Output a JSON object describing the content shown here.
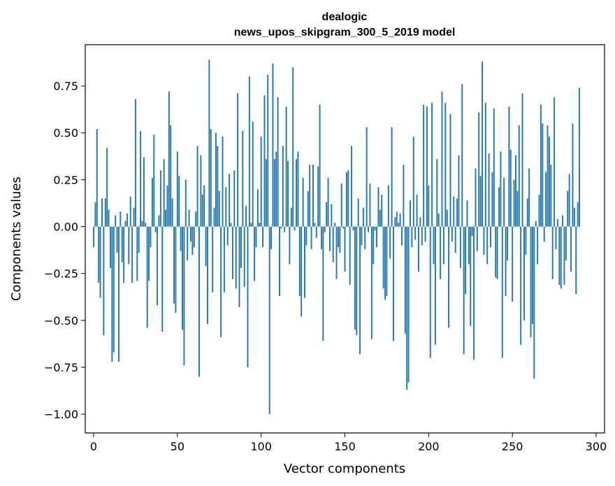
{
  "chart_data": {
    "type": "bar",
    "title": "dealogic",
    "subtitle": "news_upos_skipgram_300_5_2019 model",
    "xlabel": "Vector components",
    "ylabel": "Components values",
    "xlim": [
      -5,
      305
    ],
    "ylim": [
      -1.1,
      0.97
    ],
    "xticks": [
      0,
      50,
      100,
      150,
      200,
      250,
      300
    ],
    "yticks": [
      0.75,
      0.5,
      0.25,
      0.0,
      -0.25,
      -0.5,
      -0.75,
      -1.0
    ],
    "ytick_labels": [
      "0.75",
      "0.50",
      "0.25",
      "0.00",
      "−0.25",
      "−0.50",
      "−0.75",
      "−1.00"
    ],
    "grid": false,
    "bar_color": "#1f77b4",
    "x_start": 0,
    "values": [
      -0.11,
      0.13,
      0.52,
      -0.3,
      -0.38,
      0.15,
      -0.58,
      0.15,
      0.42,
      0.09,
      -0.22,
      -0.72,
      -0.67,
      0.06,
      -0.14,
      -0.72,
      0.08,
      -0.19,
      -0.3,
      0.03,
      0.07,
      -0.2,
      0.16,
      -0.3,
      0.1,
      0.68,
      -0.29,
      -0.14,
      0.51,
      0.03,
      0.37,
      0.02,
      -0.54,
      -0.29,
      -0.11,
      0.26,
      0.49,
      -0.03,
      -0.42,
      0.06,
      0.3,
      -0.56,
      0.36,
      0.09,
      0.22,
      0.72,
      0.54,
      0.15,
      -0.41,
      -0.46,
      0.4,
      0.27,
      -0.13,
      -0.55,
      -0.74,
      0.25,
      -0.18,
      0.09,
      -0.08,
      -0.15,
      -0.11,
      0.08,
      0.43,
      -0.8,
      0.38,
      0.17,
      0.22,
      -0.21,
      -0.52,
      0.89,
      0.52,
      -0.35,
      0.1,
      0.5,
      0.43,
      0.19,
      -0.59,
      0.48,
      -0.35,
      0.21,
      -0.1,
      0.28,
      0.02,
      -0.28,
      0.3,
      -0.33,
      0.71,
      -0.43,
      -0.22,
      0.51,
      -0.32,
      0.11,
      -0.75,
      0.8,
      0.02,
      0.56,
      -0.29,
      -0.11,
      0.2,
      0.02,
      0.48,
      -0.11,
      0.7,
      0.36,
      0.81,
      -1.0,
      -0.12,
      0.87,
      0.36,
      0.4,
      0.69,
      -0.37,
      -0.01,
      0.43,
      -0.03,
      0.64,
      0.35,
      -0.2,
      0.1,
      0.85,
      -0.02,
      0.36,
      0.4,
      -0.37,
      -0.48,
      0.26,
      -0.38,
      -0.1,
      0.19,
      0.33,
      -0.12,
      0.33,
      0.02,
      -0.06,
      0.32,
      0.65,
      -0.12,
      -0.61,
      -0.03,
      0.13,
      0.26,
      -0.13,
      0.12,
      -0.19,
      0.02,
      -0.28,
      -0.11,
      -0.14,
      0.23,
      -0.01,
      -0.24,
      0.29,
      0.3,
      -0.31,
      0.43,
      -0.02,
      -0.55,
      -0.58,
      0.15,
      -0.68,
      -0.1,
      0.1,
      -0.12,
      0.53,
      -0.03,
      0.23,
      -0.6,
      -0.2,
      -0.02,
      -0.11,
      0.21,
      0.09,
      0.17,
      -0.33,
      -0.39,
      -0.37,
      0.22,
      -0.17,
      0.53,
      -0.61,
      0.05,
      0.08,
      0.02,
      0.07,
      -0.1,
      0.33,
      -0.57,
      -0.87,
      -0.83,
      0.14,
      -0.11,
      0.48,
      -0.07,
      0.17,
      -0.24,
      0.05,
      -0.1,
      0.65,
      -0.08,
      0.64,
      0.22,
      -0.7,
      0.66,
      -0.2,
      -0.63,
      0.36,
      0.07,
      -0.28,
      0.72,
      -0.2,
      0.66,
      0.09,
      -0.54,
      0.6,
      -0.08,
      0.16,
      -0.14,
      0.15,
      0.38,
      -0.22,
      0.76,
      -0.68,
      -0.36,
      0.14,
      -0.2,
      -0.53,
      -0.05,
      -0.71,
      0.31,
      -0.13,
      0.61,
      0.27,
      0.88,
      -0.15,
      0.66,
      -0.2,
      0.39,
      -0.11,
      0.29,
      0.63,
      -0.27,
      -0.28,
      0.21,
      0.4,
      -0.7,
      0.26,
      -0.37,
      -0.18,
      0.64,
      0.41,
      -0.4,
      0.25,
      0.38,
      0.19,
      0.54,
      -0.63,
      0.71,
      -0.5,
      -0.15,
      0.15,
      0.31,
      -0.59,
      -0.52,
      -0.81,
      0.03,
      -0.2,
      0.17,
      0.65,
      0.55,
      -0.08,
      0.29,
      0.54,
      0.48,
      0.33,
      -0.28,
      0.69,
      -0.12,
      0.04,
      -0.31,
      -0.33,
      0.06,
      -0.31,
      -0.18,
      0.19,
      0.28,
      -0.24,
      0.55,
      0.1,
      -0.36,
      0.13,
      0.74,
      0.0
    ]
  }
}
